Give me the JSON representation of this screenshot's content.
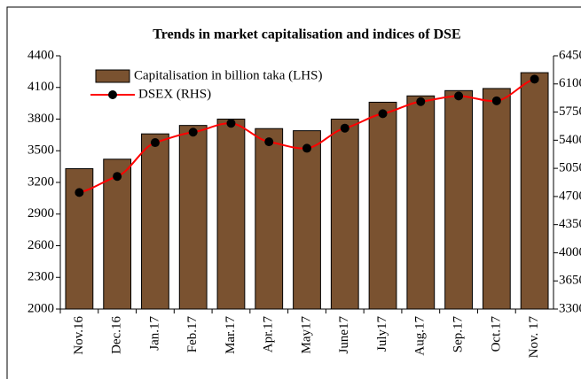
{
  "chart_data": {
    "type": "bar-line",
    "title": "Trends in market capitalisation and indices of DSE",
    "categories": [
      "Nov.16",
      "Dec.16",
      "Jan.17",
      "Feb.17",
      "Mar.17",
      "Apr.17",
      "May17",
      "June17",
      "July17",
      "Aug.17",
      "Sep.17",
      "Oct.17",
      "Nov. 17"
    ],
    "series": [
      {
        "name": "Capitalisation in billion taka (LHS)",
        "color": "#7a5230",
        "type": "bar",
        "values": [
          3330,
          3420,
          3660,
          3740,
          3800,
          3710,
          3690,
          3800,
          3960,
          4020,
          4070,
          4090,
          4240
        ]
      },
      {
        "name": "DSEX (RHS)",
        "color": "#ff0000",
        "type": "line",
        "axis": "y2",
        "values": [
          4750,
          4950,
          5370,
          5500,
          5610,
          5380,
          5300,
          5550,
          5730,
          5880,
          5950,
          5890,
          6160
        ]
      }
    ],
    "ylim": [
      2000,
      4400
    ],
    "yticks": [
      2000,
      2300,
      2600,
      2900,
      3200,
      3500,
      3800,
      4100,
      4400
    ],
    "y2lim": [
      3300,
      6450
    ],
    "y2ticks": [
      3300,
      3650,
      4000,
      4350,
      4700,
      5050,
      5400,
      5750,
      6100,
      6450
    ],
    "legend": "upper left"
  }
}
